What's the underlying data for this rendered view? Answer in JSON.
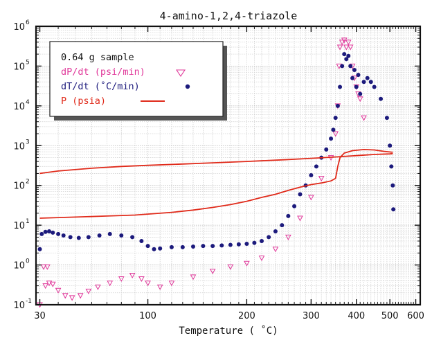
{
  "chart_data": {
    "type": "scatter",
    "title": "4-amino-1,2,4-triazole",
    "xlabel": "Temperature  ( ˚C)",
    "ylabel": "",
    "x_scale": "reciprocal",
    "y_scale": "log",
    "xlim": [
      28,
      620
    ],
    "ylim": [
      0.1,
      1000000
    ],
    "grid": true,
    "legend_placement": "top-left",
    "x_ticks": [
      "30",
      "100",
      "200",
      "300",
      "400",
      "500",
      "600"
    ],
    "x_tick_values": [
      30,
      100,
      200,
      300,
      400,
      500,
      600
    ],
    "y_ticks": [
      {
        "base": "10",
        "exp": "-1",
        "value": 0.1
      },
      {
        "base": "10",
        "exp": "0",
        "value": 1
      },
      {
        "base": "10",
        "exp": "1",
        "value": 10
      },
      {
        "base": "10",
        "exp": "2",
        "value": 100
      },
      {
        "base": "10",
        "exp": "3",
        "value": 1000
      },
      {
        "base": "10",
        "exp": "4",
        "value": 10000
      },
      {
        "base": "10",
        "exp": "5",
        "value": 100000
      },
      {
        "base": "10",
        "exp": "6",
        "value": 1000000
      }
    ],
    "legend": {
      "note": "0.64  g  sample",
      "entries": [
        {
          "label": "dP/dt  (psi/min)",
          "marker": "triangle-down",
          "color": "#e0389a"
        },
        {
          "label": "dT/dt  (˚C/min)",
          "marker": "circle",
          "color": "#1c1a7c"
        },
        {
          "label": "P  (psia)",
          "marker": "line",
          "color": "#e02a1a"
        }
      ]
    },
    "series": [
      {
        "name": "dP/dt  (psi/min)",
        "marker": "triangle-down",
        "color": "#e0389a",
        "points": [
          [
            30,
            0.1
          ],
          [
            32,
            0.9
          ],
          [
            34,
            0.9
          ],
          [
            33,
            0.3
          ],
          [
            35,
            0.35
          ],
          [
            37,
            0.33
          ],
          [
            40,
            0.23
          ],
          [
            44,
            0.17
          ],
          [
            48,
            0.15
          ],
          [
            53,
            0.17
          ],
          [
            58,
            0.22
          ],
          [
            64,
            0.28
          ],
          [
            72,
            0.35
          ],
          [
            80,
            0.45
          ],
          [
            88,
            0.55
          ],
          [
            95,
            0.45
          ],
          [
            100,
            0.35
          ],
          [
            110,
            0.28
          ],
          [
            120,
            0.35
          ],
          [
            140,
            0.5
          ],
          [
            160,
            0.7
          ],
          [
            180,
            0.9
          ],
          [
            200,
            1.1
          ],
          [
            220,
            1.5
          ],
          [
            240,
            2.5
          ],
          [
            260,
            5
          ],
          [
            280,
            15
          ],
          [
            300,
            50
          ],
          [
            320,
            150
          ],
          [
            340,
            500
          ],
          [
            350,
            2000
          ],
          [
            355,
            10000
          ],
          [
            358,
            100000
          ],
          [
            360,
            300000
          ],
          [
            365,
            400000
          ],
          [
            370,
            450000
          ],
          [
            375,
            300000
          ],
          [
            380,
            400000
          ],
          [
            385,
            300000
          ],
          [
            390,
            100000
          ],
          [
            395,
            50000
          ],
          [
            400,
            30000
          ],
          [
            405,
            20000
          ],
          [
            410,
            15000
          ],
          [
            420,
            5000
          ]
        ]
      },
      {
        "name": "dT/dt  (˚C/min)",
        "marker": "circle",
        "color": "#1c1a7c",
        "points": [
          [
            30,
            2.5
          ],
          [
            31,
            6
          ],
          [
            33,
            6.8
          ],
          [
            35,
            7
          ],
          [
            37,
            6.5
          ],
          [
            40,
            6
          ],
          [
            43,
            5.5
          ],
          [
            47,
            5
          ],
          [
            52,
            4.8
          ],
          [
            58,
            5
          ],
          [
            65,
            5.5
          ],
          [
            72,
            6
          ],
          [
            80,
            5.5
          ],
          [
            88,
            5
          ],
          [
            95,
            4
          ],
          [
            100,
            3
          ],
          [
            105,
            2.5
          ],
          [
            110,
            2.6
          ],
          [
            120,
            2.8
          ],
          [
            130,
            2.8
          ],
          [
            140,
            2.9
          ],
          [
            150,
            3
          ],
          [
            160,
            3
          ],
          [
            170,
            3.1
          ],
          [
            180,
            3.2
          ],
          [
            190,
            3.3
          ],
          [
            200,
            3.4
          ],
          [
            210,
            3.6
          ],
          [
            220,
            4
          ],
          [
            230,
            5
          ],
          [
            240,
            7
          ],
          [
            250,
            10
          ],
          [
            260,
            17
          ],
          [
            270,
            30
          ],
          [
            280,
            60
          ],
          [
            290,
            100
          ],
          [
            300,
            180
          ],
          [
            310,
            300
          ],
          [
            320,
            500
          ],
          [
            330,
            800
          ],
          [
            340,
            1500
          ],
          [
            345,
            2500
          ],
          [
            350,
            5000
          ],
          [
            355,
            10000
          ],
          [
            360,
            30000
          ],
          [
            365,
            100000
          ],
          [
            370,
            200000
          ],
          [
            375,
            150000
          ],
          [
            380,
            180000
          ],
          [
            385,
            100000
          ],
          [
            390,
            50000
          ],
          [
            395,
            80000
          ],
          [
            400,
            30000
          ],
          [
            405,
            60000
          ],
          [
            410,
            20000
          ],
          [
            420,
            40000
          ],
          [
            430,
            50000
          ],
          [
            440,
            40000
          ],
          [
            450,
            30000
          ],
          [
            470,
            15000
          ],
          [
            490,
            5000
          ],
          [
            500,
            1000
          ],
          [
            505,
            300
          ],
          [
            510,
            100
          ],
          [
            512,
            25
          ]
        ]
      },
      {
        "name": "P  (psia) upper",
        "marker": "line",
        "color": "#e02a1a",
        "points": [
          [
            30,
            200
          ],
          [
            40,
            230
          ],
          [
            60,
            270
          ],
          [
            80,
            300
          ],
          [
            100,
            320
          ],
          [
            130,
            345
          ],
          [
            160,
            370
          ],
          [
            200,
            400
          ],
          [
            250,
            440
          ],
          [
            300,
            480
          ],
          [
            350,
            520
          ],
          [
            400,
            560
          ],
          [
            450,
            600
          ],
          [
            500,
            620
          ],
          [
            510,
            630
          ]
        ]
      },
      {
        "name": "P  (psia) lower",
        "marker": "line",
        "color": "#e02a1a",
        "points": [
          [
            30,
            15
          ],
          [
            50,
            16
          ],
          [
            70,
            17
          ],
          [
            90,
            18
          ],
          [
            100,
            19
          ],
          [
            120,
            21
          ],
          [
            140,
            24
          ],
          [
            160,
            28
          ],
          [
            180,
            33
          ],
          [
            200,
            40
          ],
          [
            220,
            50
          ],
          [
            240,
            60
          ],
          [
            260,
            75
          ],
          [
            280,
            90
          ],
          [
            300,
            105
          ],
          [
            320,
            115
          ],
          [
            340,
            130
          ],
          [
            350,
            150
          ],
          [
            355,
            300
          ],
          [
            360,
            500
          ],
          [
            370,
            650
          ],
          [
            390,
            750
          ],
          [
            420,
            800
          ],
          [
            450,
            780
          ],
          [
            480,
            720
          ],
          [
            510,
            680
          ]
        ]
      }
    ]
  }
}
